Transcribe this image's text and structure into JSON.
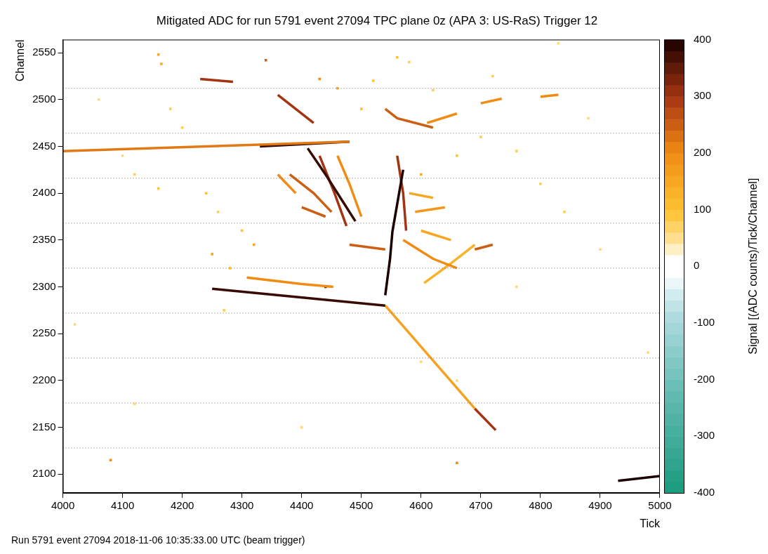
{
  "chart_data": {
    "type": "heatmap",
    "title": "Mitigated ADC for run 5791 event 27094 TPC plane 0z (APA 3: US-RaS) Trigger 12",
    "footer": "Run 5791 event 27094 2018-11-06 10:35:33.00 UTC (beam trigger)",
    "x_label": "Tick",
    "y_label": "Channel",
    "xlim": [
      4000,
      5000
    ],
    "xticks": [
      4000,
      4100,
      4200,
      4300,
      4400,
      4500,
      4600,
      4700,
      4800,
      4900,
      5000
    ],
    "ylim": [
      2080,
      2564
    ],
    "yticks": [
      2100,
      2150,
      2200,
      2250,
      2300,
      2350,
      2400,
      2450,
      2500,
      2550
    ],
    "grid": false,
    "colorbar": {
      "label": "Signal [(ADC counts)/Tick/Channel]",
      "range": [
        -400,
        400
      ],
      "ticks": [
        -400,
        -300,
        -200,
        -100,
        0,
        100,
        200,
        300,
        400
      ]
    },
    "channel_boundaries": [
      2128,
      2176,
      2224,
      2272,
      2320,
      2368,
      2416,
      2464,
      2512
    ],
    "tracks": [
      {
        "x": [
          4000,
          4480
        ],
        "y": [
          2445,
          2455
        ],
        "signal": 220
      },
      {
        "x": [
          4330,
          4480
        ],
        "y": [
          2450,
          2455
        ],
        "signal": 380
      },
      {
        "x": [
          4250,
          4540
        ],
        "y": [
          2298,
          2280
        ],
        "signal": 380
      },
      {
        "x": [
          4540,
          4690
        ],
        "y": [
          2280,
          2170
        ],
        "signal": 160
      },
      {
        "x": [
          4690,
          4725
        ],
        "y": [
          2170,
          2147
        ],
        "signal": 300
      },
      {
        "x": [
          4308,
          4400,
          4453
        ],
        "y": [
          2310,
          2303,
          2300
        ],
        "signal": 200
      },
      {
        "x": [
          4540,
          4548,
          4552,
          4570
        ],
        "y": [
          2291,
          2330,
          2359,
          2425
        ],
        "signal": 400
      },
      {
        "x": [
          4410,
          4440,
          4470,
          4490
        ],
        "y": [
          2448,
          2420,
          2390,
          2370
        ],
        "signal": 380
      },
      {
        "x": [
          4430,
          4455,
          4475
        ],
        "y": [
          2440,
          2400,
          2365
        ],
        "signal": 300
      },
      {
        "x": [
          4380,
          4420,
          4450
        ],
        "y": [
          2420,
          2400,
          2380
        ],
        "signal": 250
      },
      {
        "x": [
          4460,
          4480,
          4500
        ],
        "y": [
          2440,
          2410,
          2375
        ],
        "signal": 200
      },
      {
        "x": [
          4400,
          4440
        ],
        "y": [
          2385,
          2375
        ],
        "signal": 250
      },
      {
        "x": [
          4480,
          4540
        ],
        "y": [
          2345,
          2340
        ],
        "signal": 250
      },
      {
        "x": [
          4560,
          4570,
          4575
        ],
        "y": [
          2440,
          2400,
          2360
        ],
        "signal": 300
      },
      {
        "x": [
          4570,
          4620,
          4660
        ],
        "y": [
          2350,
          2330,
          2320
        ],
        "signal": 200
      },
      {
        "x": [
          4580,
          4620
        ],
        "y": [
          2400,
          2395
        ],
        "signal": 150
      },
      {
        "x": [
          4590,
          4640
        ],
        "y": [
          2380,
          2385
        ],
        "signal": 180
      },
      {
        "x": [
          4600,
          4650
        ],
        "y": [
          2360,
          2350
        ],
        "signal": 150
      },
      {
        "x": [
          4690,
          4720
        ],
        "y": [
          2340,
          2345
        ],
        "signal": 250
      },
      {
        "x": [
          4605,
          4650,
          4690
        ],
        "y": [
          2304,
          2325,
          2345
        ],
        "signal": 130
      },
      {
        "x": [
          4360,
          4390,
          4420
        ],
        "y": [
          2505,
          2490,
          2475
        ],
        "signal": 300
      },
      {
        "x": [
          4230,
          4285
        ],
        "y": [
          2522,
          2519
        ],
        "signal": 300
      },
      {
        "x": [
          4540,
          4560,
          4620
        ],
        "y": [
          2490,
          2480,
          2470
        ],
        "signal": 250
      },
      {
        "x": [
          4610,
          4660
        ],
        "y": [
          2475,
          2485
        ],
        "signal": 200
      },
      {
        "x": [
          4700,
          4735
        ],
        "y": [
          2496,
          2501
        ],
        "signal": 200
      },
      {
        "x": [
          4800,
          4830
        ],
        "y": [
          2503,
          2505
        ],
        "signal": 200
      },
      {
        "x": [
          4360,
          4390
        ],
        "y": [
          2420,
          2400
        ],
        "signal": 200
      },
      {
        "x": [
          4930,
          5000
        ],
        "y": [
          2093,
          2098
        ],
        "signal": 400
      }
    ],
    "hits": [
      [
        4160,
        2548,
        150
      ],
      [
        4165,
        2538,
        150
      ],
      [
        4340,
        2542,
        250
      ],
      [
        4430,
        2522,
        200
      ],
      [
        4460,
        2512,
        150
      ],
      [
        4520,
        2520,
        100
      ],
      [
        4120,
        2420,
        80
      ],
      [
        4160,
        2405,
        100
      ],
      [
        4240,
        2400,
        100
      ],
      [
        4260,
        2380,
        80
      ],
      [
        4300,
        2360,
        100
      ],
      [
        4320,
        2345,
        150
      ],
      [
        4250,
        2335,
        150
      ],
      [
        4280,
        2320,
        100
      ],
      [
        4100,
        2440,
        60
      ],
      [
        4080,
        2115,
        200
      ],
      [
        4270,
        2275,
        80
      ],
      [
        4020,
        2260,
        60
      ],
      [
        4660,
        2112,
        200
      ],
      [
        4600,
        2420,
        150
      ],
      [
        4660,
        2440,
        100
      ],
      [
        4700,
        2460,
        80
      ],
      [
        4760,
        2445,
        80
      ],
      [
        4800,
        2410,
        80
      ],
      [
        4840,
        2380,
        80
      ],
      [
        4900,
        2340,
        60
      ],
      [
        4980,
        2230,
        60
      ],
      [
        4560,
        2545,
        100
      ],
      [
        4580,
        2540,
        80
      ],
      [
        4500,
        2490,
        100
      ],
      [
        4620,
        2510,
        80
      ],
      [
        4180,
        2490,
        80
      ],
      [
        4200,
        2470,
        80
      ],
      [
        4060,
        2500,
        60
      ],
      [
        4440,
        2300,
        380
      ],
      [
        4760,
        2300,
        60
      ],
      [
        4120,
        2175,
        60
      ],
      [
        4880,
        2480,
        60
      ],
      [
        4720,
        2525,
        80
      ],
      [
        4400,
        2150,
        60
      ],
      [
        4600,
        2220,
        60
      ],
      [
        4660,
        2200,
        60
      ],
      [
        4830,
        2560,
        60
      ]
    ]
  }
}
